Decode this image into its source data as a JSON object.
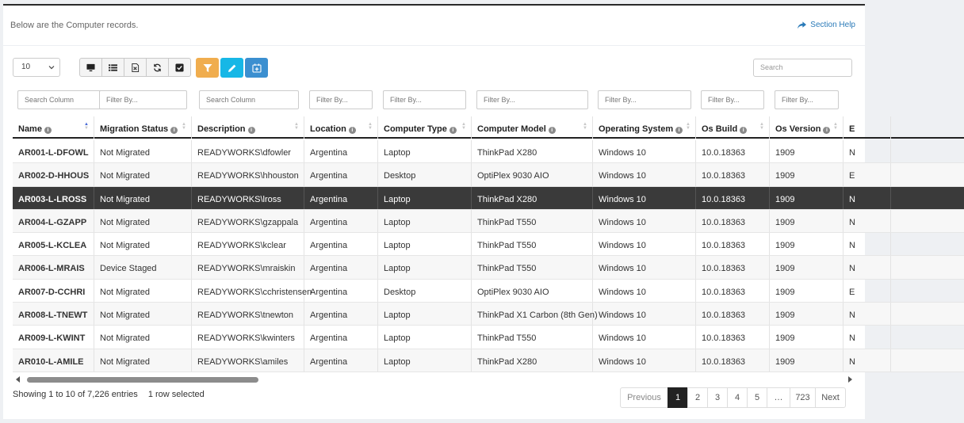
{
  "intro_text": "Below are the Computer records.",
  "section_help": "Section Help",
  "page_length": "10",
  "search_placeholder": "Search",
  "toolbar": {
    "buttons": [
      "monitor-icon",
      "list-icon",
      "excel-export-icon",
      "refresh-icon",
      "checkbox-icon"
    ],
    "filter_color": "#f0ad4e",
    "edit_color": "#17b7e6",
    "calendar_color": "#3b8fd0"
  },
  "filters": [
    "Search Column",
    "Filter By...",
    "Search Column",
    "Filter By...",
    "Filter By...",
    "Filter By...",
    "Filter By...",
    "Filter By...",
    "Filter By..."
  ],
  "columns": [
    "Name",
    "Migration Status",
    "Description",
    "Location",
    "Computer Type",
    "Computer Model",
    "Operating System",
    "Os Build",
    "Os Version",
    "E"
  ],
  "rows": [
    [
      "AR001-L-DFOWL",
      "Not Migrated",
      "READYWORKS\\dfowler",
      "Argentina",
      "Laptop",
      "ThinkPad X280",
      "Windows 10",
      "10.0.18363",
      "1909",
      "N"
    ],
    [
      "AR002-D-HHOUS",
      "Not Migrated",
      "READYWORKS\\hhouston",
      "Argentina",
      "Desktop",
      "OptiPlex 9030 AIO",
      "Windows 10",
      "10.0.18363",
      "1909",
      "E"
    ],
    [
      "AR003-L-LROSS",
      "Not Migrated",
      "READYWORKS\\lross",
      "Argentina",
      "Laptop",
      "ThinkPad X280",
      "Windows 10",
      "10.0.18363",
      "1909",
      "N"
    ],
    [
      "AR004-L-GZAPP",
      "Not Migrated",
      "READYWORKS\\gzappala",
      "Argentina",
      "Laptop",
      "ThinkPad T550",
      "Windows 10",
      "10.0.18363",
      "1909",
      "N"
    ],
    [
      "AR005-L-KCLEA",
      "Not Migrated",
      "READYWORKS\\kclear",
      "Argentina",
      "Laptop",
      "ThinkPad T550",
      "Windows 10",
      "10.0.18363",
      "1909",
      "N"
    ],
    [
      "AR006-L-MRAIS",
      "Device Staged",
      "READYWORKS\\mraiskin",
      "Argentina",
      "Laptop",
      "ThinkPad T550",
      "Windows 10",
      "10.0.18363",
      "1909",
      "N"
    ],
    [
      "AR007-D-CCHRI",
      "Not Migrated",
      "READYWORKS\\cchristensen",
      "Argentina",
      "Desktop",
      "OptiPlex 9030 AIO",
      "Windows 10",
      "10.0.18363",
      "1909",
      "E"
    ],
    [
      "AR008-L-TNEWT",
      "Not Migrated",
      "READYWORKS\\tnewton",
      "Argentina",
      "Laptop",
      "ThinkPad X1 Carbon (8th Gen)",
      "Windows 10",
      "10.0.18363",
      "1909",
      "N"
    ],
    [
      "AR009-L-KWINT",
      "Not Migrated",
      "READYWORKS\\kwinters",
      "Argentina",
      "Laptop",
      "ThinkPad T550",
      "Windows 10",
      "10.0.18363",
      "1909",
      "N"
    ],
    [
      "AR010-L-AMILE",
      "Not Migrated",
      "READYWORKS\\amiles",
      "Argentina",
      "Laptop",
      "ThinkPad X280",
      "Windows 10",
      "10.0.18363",
      "1909",
      "N"
    ]
  ],
  "selected_row": 2,
  "info": {
    "showing": "Showing 1 to 10 of 7,226 entries",
    "selected": "1 row selected"
  },
  "pagination": [
    "Previous",
    "1",
    "2",
    "3",
    "4",
    "5",
    "…",
    "723",
    "Next"
  ],
  "active_page": "1"
}
